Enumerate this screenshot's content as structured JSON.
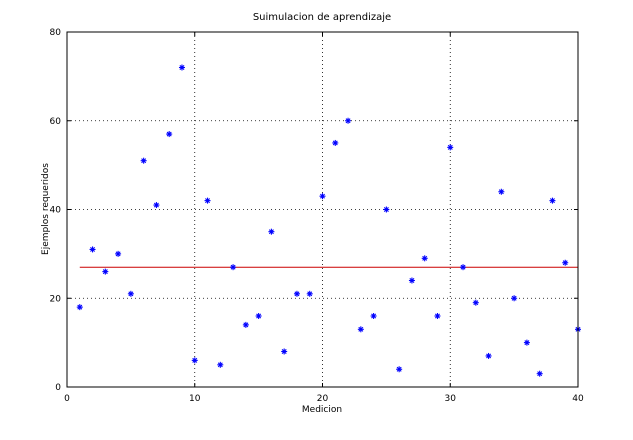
{
  "chart_data": {
    "type": "scatter",
    "title": "Suimulacion de aprendizaje",
    "xlabel": "Medicion",
    "ylabel": "Ejemplos requeridos",
    "xlim": [
      0,
      40
    ],
    "ylim": [
      0,
      80
    ],
    "xticks": [
      0,
      10,
      20,
      30,
      40
    ],
    "yticks": [
      0,
      20,
      40,
      60,
      80
    ],
    "grid": true,
    "marker": "*",
    "series": [
      {
        "color": "#0000ff",
        "x": [
          1,
          2,
          3,
          4,
          5,
          6,
          7,
          8,
          9,
          10,
          11,
          12,
          13,
          14,
          15,
          16,
          17,
          18,
          19,
          20,
          21,
          22,
          23,
          24,
          25,
          26,
          27,
          28,
          29,
          30,
          31,
          32,
          33,
          34,
          35,
          36,
          37,
          38,
          39,
          40
        ],
        "y": [
          18,
          31,
          26,
          30,
          21,
          51,
          41,
          57,
          72,
          6,
          42,
          5,
          27,
          14,
          16,
          35,
          8,
          21,
          21,
          43,
          55,
          60,
          13,
          16,
          40,
          4,
          24,
          29,
          16,
          54,
          27,
          19,
          7,
          44,
          20,
          10,
          3,
          42,
          28,
          13
        ]
      }
    ],
    "reference_line": {
      "y": 27,
      "color": "#cc0000"
    }
  }
}
